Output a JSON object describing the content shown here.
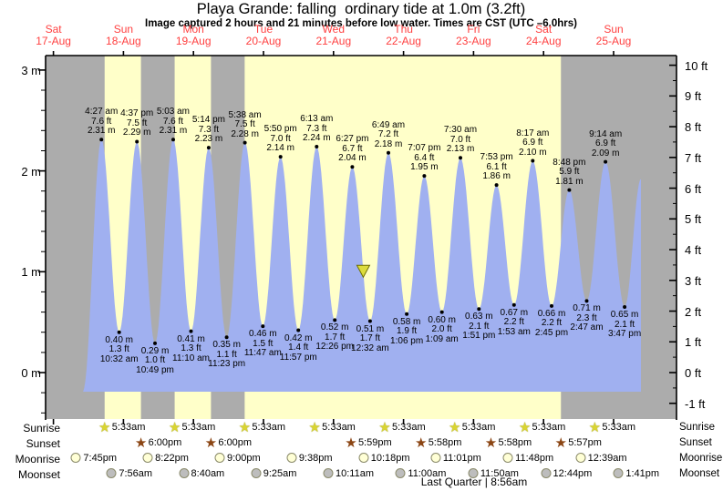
{
  "chart_data": {
    "type": "area",
    "title": "Playa Grande: falling  ordinary tide at 1.0m (3.2ft)",
    "subtitle": "Image captured 2 hours and 21 minutes before low water. Times are CST (UTC –6.0hrs)",
    "series_name": "tide height",
    "ylim_m": [
      -0.45,
      3.15
    ],
    "y_ticks_left": [
      {
        "value": 3,
        "label": "3 m"
      },
      {
        "value": 2,
        "label": "2 m"
      },
      {
        "value": 1,
        "label": "1 m"
      },
      {
        "value": 0,
        "label": "0 m"
      }
    ],
    "y_ticks_right": [
      {
        "value": 10,
        "label": "10 ft"
      },
      {
        "value": 9,
        "label": "9 ft"
      },
      {
        "value": 8,
        "label": "8 ft"
      },
      {
        "value": 7,
        "label": "7 ft"
      },
      {
        "value": 6,
        "label": "6 ft"
      },
      {
        "value": 5,
        "label": "5 ft"
      },
      {
        "value": 4,
        "label": "4 ft"
      },
      {
        "value": 3,
        "label": "3 ft"
      },
      {
        "value": 2,
        "label": "2 ft"
      },
      {
        "value": 1,
        "label": "1 ft"
      },
      {
        "value": 0,
        "label": "0 ft"
      },
      {
        "value": -1,
        "label": "-1 ft"
      }
    ],
    "days": [
      {
        "weekday": "Sat",
        "date": "17-Aug"
      },
      {
        "weekday": "Sun",
        "date": "18-Aug"
      },
      {
        "weekday": "Mon",
        "date": "19-Aug"
      },
      {
        "weekday": "Tue",
        "date": "20-Aug"
      },
      {
        "weekday": "Wed",
        "date": "21-Aug"
      },
      {
        "weekday": "Thu",
        "date": "22-Aug"
      },
      {
        "weekday": "Fri",
        "date": "23-Aug"
      },
      {
        "weekday": "Sat",
        "date": "24-Aug"
      },
      {
        "weekday": "Sun",
        "date": "25-Aug"
      }
    ],
    "extremes": [
      {
        "kind": "high",
        "day": 1,
        "time": "4:27 am",
        "ft": "7.6 ft",
        "m": "2.31 m"
      },
      {
        "kind": "low",
        "day": 1,
        "time": "10:32 am",
        "m": "0.40 m",
        "ft": "1.3 ft"
      },
      {
        "kind": "high",
        "day": 1,
        "time": "4:37 pm",
        "ft": "7.5 ft",
        "m": "2.29 m"
      },
      {
        "kind": "low",
        "day": 1,
        "time": "10:49 pm",
        "m": "0.29 m",
        "ft": "1.0 ft"
      },
      {
        "kind": "high",
        "day": 2,
        "time": "5:03 am",
        "ft": "7.6 ft",
        "m": "2.31 m"
      },
      {
        "kind": "low",
        "day": 2,
        "time": "11:10 am",
        "m": "0.41 m",
        "ft": "1.3 ft"
      },
      {
        "kind": "high",
        "day": 2,
        "time": "5:14 pm",
        "ft": "7.3 ft",
        "m": "2.23 m"
      },
      {
        "kind": "low",
        "day": 2,
        "time": "11:23 pm",
        "m": "0.35 m",
        "ft": "1.1 ft"
      },
      {
        "kind": "high",
        "day": 3,
        "time": "5:38 am",
        "ft": "7.5 ft",
        "m": "2.28 m"
      },
      {
        "kind": "low",
        "day": 3,
        "time": "11:47 am",
        "m": "0.46 m",
        "ft": "1.5 ft"
      },
      {
        "kind": "high",
        "day": 3,
        "time": "5:50 pm",
        "ft": "7.0 ft",
        "m": "2.14 m"
      },
      {
        "kind": "low",
        "day": 3,
        "time": "11:57 pm",
        "m": "0.42 m",
        "ft": "1.4 ft"
      },
      {
        "kind": "high",
        "day": 4,
        "time": "6:13 am",
        "ft": "7.3 ft",
        "m": "2.24 m"
      },
      {
        "kind": "low",
        "day": 4,
        "time": "12:26 pm",
        "m": "0.52 m",
        "ft": "1.7 ft"
      },
      {
        "kind": "high",
        "day": 4,
        "time": "6:27 pm",
        "ft": "6.7 ft",
        "m": "2.04 m"
      },
      {
        "kind": "low",
        "day": 5,
        "time": "12:32 am",
        "m": "0.51 m",
        "ft": "1.7 ft"
      },
      {
        "kind": "high",
        "day": 5,
        "time": "6:49 am",
        "ft": "7.2 ft",
        "m": "2.18 m"
      },
      {
        "kind": "low",
        "day": 5,
        "time": "1:06 pm",
        "m": "0.58 m",
        "ft": "1.9 ft"
      },
      {
        "kind": "high",
        "day": 5,
        "time": "7:07 pm",
        "ft": "6.4 ft",
        "m": "1.95 m"
      },
      {
        "kind": "low",
        "day": 6,
        "time": "1:09 am",
        "m": "0.60 m",
        "ft": "2.0 ft"
      },
      {
        "kind": "high",
        "day": 6,
        "time": "7:30 am",
        "ft": "7.0 ft",
        "m": "2.13 m"
      },
      {
        "kind": "low",
        "day": 6,
        "time": "1:51 pm",
        "m": "0.63 m",
        "ft": "2.1 ft"
      },
      {
        "kind": "high",
        "day": 6,
        "time": "7:53 pm",
        "ft": "6.1 ft",
        "m": "1.86 m"
      },
      {
        "kind": "low",
        "day": 7,
        "time": "1:53 am",
        "m": "0.67 m",
        "ft": "2.2 ft"
      },
      {
        "kind": "high",
        "day": 7,
        "time": "8:17 am",
        "ft": "6.9 ft",
        "m": "2.10 m"
      },
      {
        "kind": "low",
        "day": 7,
        "time": "2:45 pm",
        "m": "0.66 m",
        "ft": "2.2 ft"
      },
      {
        "kind": "high",
        "day": 7,
        "time": "8:48 pm",
        "ft": "5.9 ft",
        "m": "1.81 m"
      },
      {
        "kind": "low",
        "day": 8,
        "time": "2:47 am",
        "m": "0.71 m",
        "ft": "2.3 ft"
      },
      {
        "kind": "high",
        "day": 8,
        "time": "9:14 am",
        "ft": "6.9 ft",
        "m": "2.09 m"
      },
      {
        "kind": "low",
        "day": 8,
        "time": "3:47 pm",
        "m": "0.65 m",
        "ft": "2.1 ft"
      }
    ],
    "night_bands_hours": [
      [
        9.3,
        29.55
      ],
      [
        42.0,
        53.55
      ],
      [
        66.0,
        77.55
      ],
      [
        185.95,
        225.6
      ]
    ],
    "now_marker": {
      "hours": 118.2,
      "height_m": 1.0
    }
  },
  "almanac": {
    "row_labels": [
      "Sunrise",
      "Sunset",
      "Moonrise",
      "Moonset"
    ],
    "sunrise": [
      {
        "day": 1,
        "time": "5:33am"
      },
      {
        "day": 2,
        "time": "5:33am"
      },
      {
        "day": 3,
        "time": "5:33am"
      },
      {
        "day": 4,
        "time": "5:33am"
      },
      {
        "day": 5,
        "time": "5:33am"
      },
      {
        "day": 6,
        "time": "5:33am"
      },
      {
        "day": 7,
        "time": "5:33am"
      },
      {
        "day": 8,
        "time": "5:33am"
      }
    ],
    "sunset": [
      {
        "day": 1,
        "time": "6:00pm"
      },
      {
        "day": 2,
        "time": "6:00pm"
      },
      {
        "day": 4,
        "time": "5:59pm"
      },
      {
        "day": 5,
        "time": "5:58pm"
      },
      {
        "day": 6,
        "time": "5:58pm"
      },
      {
        "day": 7,
        "time": "5:57pm"
      }
    ],
    "moonrise": [
      {
        "day": 0,
        "time": "7:45pm"
      },
      {
        "day": 1,
        "time": "8:22pm"
      },
      {
        "day": 2,
        "time": "9:00pm"
      },
      {
        "day": 3,
        "time": "9:38pm"
      },
      {
        "day": 4,
        "time": "10:18pm"
      },
      {
        "day": 5,
        "time": "11:01pm"
      },
      {
        "day": 6,
        "time": "11:48pm"
      },
      {
        "day": 8,
        "time": "12:39am"
      }
    ],
    "moonset": [
      {
        "day": 1,
        "time": "7:56am"
      },
      {
        "day": 2,
        "time": "8:40am"
      },
      {
        "day": 3,
        "time": "9:25am"
      },
      {
        "day": 4,
        "time": "10:11am"
      },
      {
        "day": 5,
        "time": "11:00am"
      },
      {
        "day": 6,
        "time": "11:50am"
      },
      {
        "day": 7,
        "time": "12:44pm"
      },
      {
        "day": 8,
        "time": "1:41pm"
      }
    ],
    "moon_phase": "Last Quarter | 8:56am"
  },
  "colors": {
    "day_band": "#FFFFC9",
    "night_band": "#ACACAC",
    "tide_fill": "#A0B0F0",
    "date_text": "#FF4040",
    "axis": "#000000",
    "sunrise_star": "#D9D432",
    "sunset_star": "#8B4513",
    "moonrise_icon": "#FFFFD6",
    "moonset_icon": "#BDBDBD",
    "now_marker": "#DCDC3C"
  }
}
